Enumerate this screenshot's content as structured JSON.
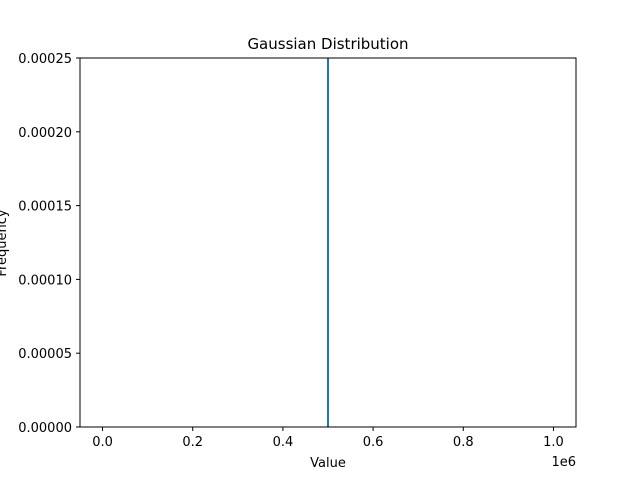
{
  "chart_data": {
    "type": "bar",
    "title": "Gaussian Distribution",
    "xlabel": "Value",
    "ylabel": "Frequency",
    "x_offset_label": "1e6",
    "xlim": [
      -0.05,
      1.05
    ],
    "ylim": [
      0,
      0.00025
    ],
    "x_ticks": [
      0.0,
      0.2,
      0.4,
      0.6,
      0.8,
      1.0
    ],
    "x_tick_labels": [
      "0.0",
      "0.2",
      "0.4",
      "0.6",
      "0.8",
      "1.0"
    ],
    "y_ticks": [
      0,
      5e-05,
      0.0001,
      0.00015,
      0.0002,
      0.00025
    ],
    "y_tick_labels": [
      "0.00000",
      "0.00005",
      "0.00010",
      "0.00015",
      "0.00020",
      "0.00025"
    ],
    "grid": false,
    "legend": "none",
    "series": [
      {
        "x": [
          0.5
        ],
        "values": [
          0.00025
        ],
        "color": "#1f77b4"
      }
    ]
  }
}
